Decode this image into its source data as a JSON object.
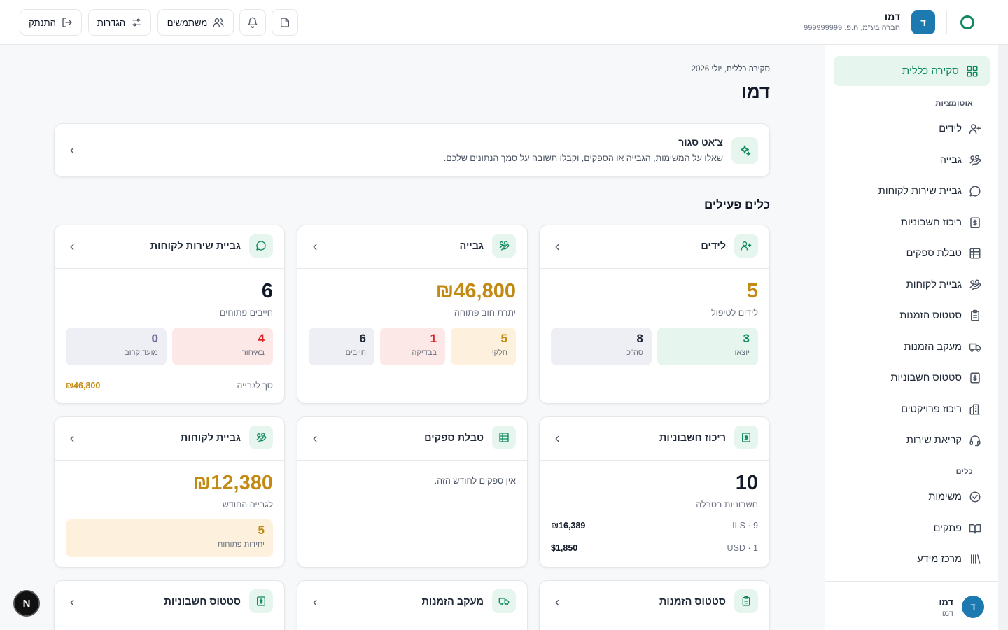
{
  "header": {
    "org_initial": "ד",
    "org_name": "דמו",
    "org_sub": "חברה בע\"מ, ח.פ. 999999999",
    "buttons": {
      "users": "משתמשים",
      "settings": "הגדרות",
      "logout": "התנתק"
    }
  },
  "sidebar": {
    "active": "סקירה כללית",
    "section_automations": "אוטומציות",
    "automations": [
      "לידים",
      "גבייה",
      "גביית שירות לקוחות",
      "ריכוז חשבוניות",
      "טבלת ספקים",
      "גביית לקוחות",
      "סטטוס הזמנות",
      "מעקב הזמנות",
      "סטטוס חשבוניות",
      "ריכוז פרויקטים",
      "קריאת שירות"
    ],
    "section_tools": "כלים",
    "tools": [
      "משימות",
      "פתקים",
      "מרכז מידע"
    ],
    "user": {
      "initial": "ד",
      "name": "דמו",
      "sub": "דמו"
    }
  },
  "main": {
    "breadcrumb": "סקירה כללית, יולי 2026",
    "title": "דמו",
    "chat": {
      "title": "צ'אט סגור",
      "subtitle": "שאלו על המשימות, הגבייה או הספקים, וקבלו תשובה על סמך הנתונים שלכם."
    },
    "section_title": "כלים פעילים",
    "cards": {
      "leads": {
        "title": "לידים",
        "value": "5",
        "label": "לידים לטיפול",
        "tiles": [
          {
            "value": "3",
            "label": "יוצאו"
          },
          {
            "value": "8",
            "label": "סה\"כ"
          }
        ]
      },
      "collection": {
        "title": "גבייה",
        "value": "₪46,800",
        "label": "יתרת חוב פתוחה",
        "tiles": [
          {
            "value": "5",
            "label": "חלקי"
          },
          {
            "value": "1",
            "label": "בבדיקה"
          },
          {
            "value": "6",
            "label": "חייבים"
          }
        ]
      },
      "cs_collection": {
        "title": "גביית שירות לקוחות",
        "value": "6",
        "label": "חייבים פתוחים",
        "tiles": [
          {
            "value": "4",
            "label": "באיחור"
          },
          {
            "value": "0",
            "label": "מועד קרוב"
          }
        ],
        "footer_label": "סך לגבייה",
        "footer_value": "₪46,800"
      },
      "invoices": {
        "title": "ריכוז חשבוניות",
        "value": "10",
        "label": "חשבוניות בטבלה",
        "rows": [
          {
            "label": "ILS · 9",
            "value": "₪16,389"
          },
          {
            "label": "USD · 1",
            "value": "$1,850"
          }
        ]
      },
      "suppliers": {
        "title": "טבלת ספקים",
        "empty": "אין ספקים לחודש הזה."
      },
      "customer_collection": {
        "title": "גביית לקוחות",
        "value": "₪12,380",
        "label": "לגבייה החודש",
        "tile": {
          "value": "5",
          "label": "יחידות פתוחות"
        }
      },
      "order_status": {
        "title": "סטטוס הזמנות"
      },
      "order_tracking": {
        "title": "מעקב הזמנות"
      },
      "invoice_status": {
        "title": "סטטוס חשבוניות"
      }
    }
  },
  "fab": "N"
}
